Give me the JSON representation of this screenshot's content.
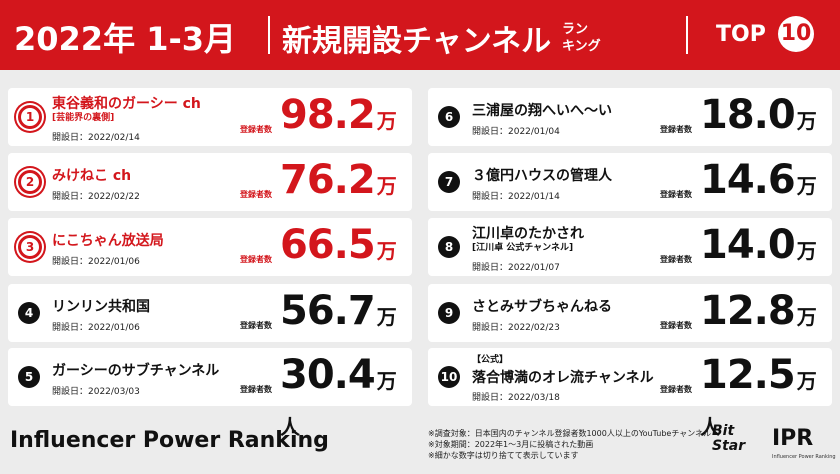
{
  "header": {
    "title_period": "2022年 1-3月",
    "title_main": "新規開設チャンネル",
    "title_suffix_1": "ラン",
    "title_suffix_2": "キング",
    "top_label": "TOP",
    "top_number": "10"
  },
  "entries": [
    {
      "rank": 1,
      "lines": [
        "東谷義和のガーシー ch",
        "[芸能界の裏側]"
      ],
      "date": "開設日：2022/02/14",
      "count_label": "登録者数",
      "value": "98.2",
      "unit": "万人"
    },
    {
      "rank": 2,
      "lines": [
        "みけねこ ch"
      ],
      "date": "開設日：2022/02/22",
      "count_label": "登録者数",
      "value": "76.2",
      "unit": "万人"
    },
    {
      "rank": 3,
      "lines": [
        "にこちゃん放送局"
      ],
      "date": "開設日：2022/01/06",
      "count_label": "登録者数",
      "value": "66.5",
      "unit": "万人"
    },
    {
      "rank": 4,
      "lines": [
        "リンリン共和国"
      ],
      "date": "開設日：2022/01/06",
      "count_label": "登録者数",
      "value": "56.7",
      "unit": "万人"
    },
    {
      "rank": 5,
      "lines": [
        "ガーシーのサブチャンネル"
      ],
      "date": "開設日：2022/03/03",
      "count_label": "登録者数",
      "value": "30.4",
      "unit": "万人"
    },
    {
      "rank": 6,
      "lines": [
        "三浦屋の翔へいへ〜い"
      ],
      "date": "開設日：2022/01/04",
      "count_label": "登録者数",
      "value": "18.0",
      "unit": "万人"
    },
    {
      "rank": 7,
      "lines": [
        "３億円ハウスの管理人"
      ],
      "date": "開設日：2022/01/14",
      "count_label": "登録者数",
      "value": "14.6",
      "unit": "万人"
    },
    {
      "rank": 8,
      "lines": [
        "江川卓のたかされ",
        "[江川卓 公式チャンネル]"
      ],
      "date": "開設日：2022/01/07",
      "count_label": "登録者数",
      "value": "14.0",
      "unit": "万人"
    },
    {
      "rank": 9,
      "lines": [
        "さとみサブちゃんねる"
      ],
      "date": "開設日：2022/02/23",
      "count_label": "登録者数",
      "value": "12.8",
      "unit": "万人"
    },
    {
      "rank": 10,
      "lines": [
        "【公式】",
        "落合博満のオレ流チャンネル"
      ],
      "date": "開設日：2022/03/18",
      "count_label": "登録者数",
      "value": "12.5",
      "unit": "万人"
    }
  ],
  "footer": {
    "brand": "Influencer Power Ranking",
    "notes": [
      "※調査対象：日本国内のチャンネル登録者数1000人以上のYouTubeチャンネル",
      "※対象期間：2022年1〜3月に投稿された動画",
      "※細かな数字は切り捨てて表示しています"
    ],
    "logo_bitstar_1": "Bit",
    "logo_bitstar_2": "Star",
    "logo_ipr": "IPR",
    "logo_ipr_sub": "Influencer Power Ranking"
  }
}
